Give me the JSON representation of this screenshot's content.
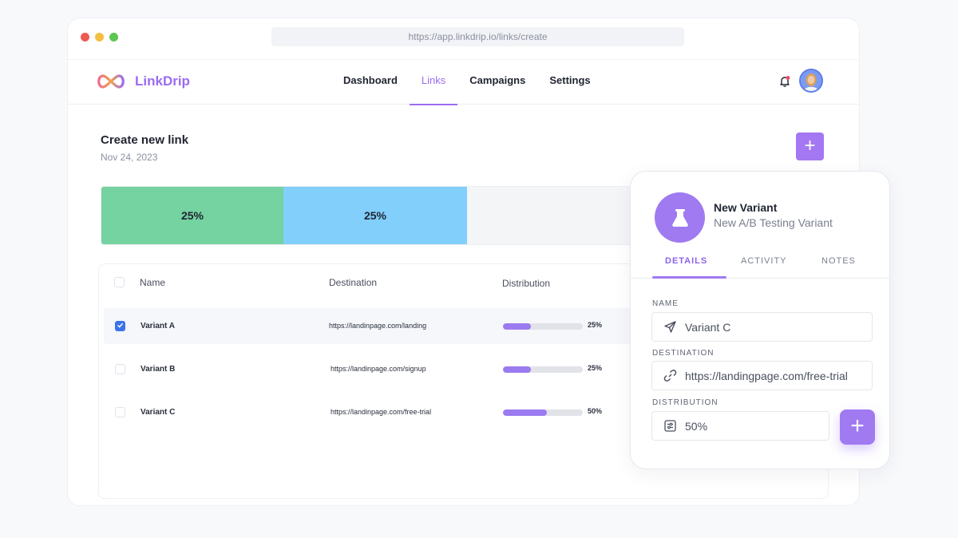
{
  "browser": {
    "url": "https://app.linkdrip.io/links/create"
  },
  "brand": {
    "name": "LinkDrip",
    "accent": "#9b6cf0"
  },
  "nav": {
    "items": [
      {
        "label": "Dashboard",
        "active": false
      },
      {
        "label": "Links",
        "active": true
      },
      {
        "label": "Campaigns",
        "active": false
      },
      {
        "label": "Settings",
        "active": false
      }
    ]
  },
  "header": {
    "title": "Create new link",
    "date": "Nov 24, 2023",
    "add_label": "+"
  },
  "distribution_bar": {
    "segments": [
      {
        "label": "25%",
        "value": 25,
        "color": "#74d3a1"
      },
      {
        "label": "25%",
        "value": 25,
        "color": "#82cffc"
      }
    ]
  },
  "table": {
    "columns": [
      "Name",
      "Destination",
      "Distribution"
    ],
    "rows": [
      {
        "name": "Variant A",
        "destination": "https://landinpage.com/landing",
        "distribution": "25%",
        "fill": 0.35,
        "checked": true
      },
      {
        "name": "Variant B",
        "destination": "https://landinpage.com/signup",
        "distribution": "25%",
        "fill": 0.35,
        "checked": false
      },
      {
        "name": "Variant C",
        "destination": "https://landinpage.com/free-trial",
        "distribution": "50%",
        "fill": 0.55,
        "checked": false
      }
    ]
  },
  "panel": {
    "title": "New Variant",
    "subtitle": "New A/B Testing Variant",
    "tabs": [
      {
        "label": "DETAILS",
        "active": true
      },
      {
        "label": "ACTIVITY",
        "active": false
      },
      {
        "label": "NOTES",
        "active": false
      }
    ],
    "fields": {
      "name_label": "NAME",
      "name_value": "Variant C",
      "destination_label": "DESTINATION",
      "destination_value": "https://landingpage.com/free-trial",
      "distribution_label": "DISTRIBUTION",
      "distribution_value": "50%"
    },
    "fab_label": "+"
  },
  "icons": [
    "infinity-logo-icon",
    "bell-icon",
    "avatar",
    "flask-icon",
    "send-icon",
    "link-icon",
    "sliders-icon",
    "plus-icon",
    "check-icon"
  ]
}
